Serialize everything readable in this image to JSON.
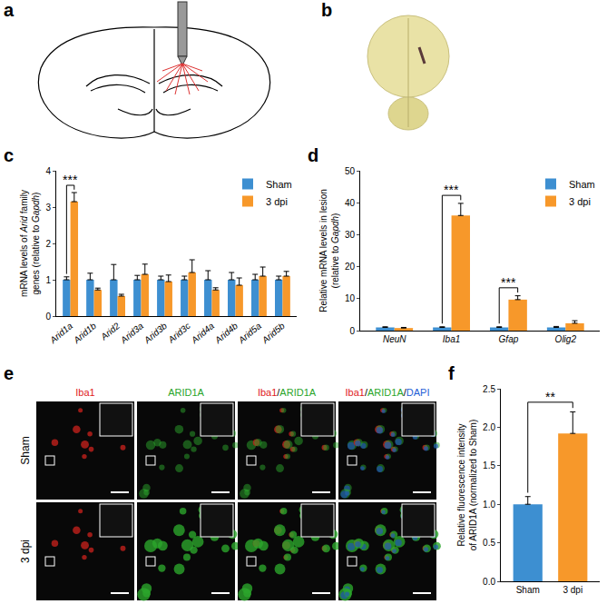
{
  "chart_data": [
    {
      "type": "bar",
      "label": "c",
      "categories": [
        "Arid1a",
        "Arid1b",
        "Arid2",
        "Arid3a",
        "Arid3b",
        "Arid3c",
        "Arid4a",
        "Arid4b",
        "Arid5a",
        "Arid5b"
      ],
      "series": [
        {
          "name": "Sham",
          "color": "#3d8fd1",
          "values": [
            1.0,
            1.0,
            1.0,
            1.0,
            1.0,
            1.0,
            1.0,
            1.0,
            1.0,
            1.0
          ],
          "errors": [
            0.08,
            0.18,
            0.42,
            0.12,
            0.1,
            0.1,
            0.25,
            0.2,
            0.15,
            0.1
          ]
        },
        {
          "name": "3 dpi",
          "color": "#f7982a",
          "values": [
            3.15,
            0.72,
            0.55,
            1.15,
            0.95,
            1.2,
            0.72,
            0.85,
            1.1,
            1.1
          ],
          "errors": [
            0.25,
            0.05,
            0.05,
            0.28,
            0.18,
            0.35,
            0.06,
            0.2,
            0.25,
            0.13
          ]
        }
      ],
      "ylabel": [
        "mRNA levels of Arid family",
        "genes (relative to Gapdh)"
      ],
      "ylim": [
        0,
        4
      ],
      "yticks": [
        0,
        1,
        2,
        3,
        4
      ],
      "legend": "top-right",
      "annotations": [
        {
          "text": "***",
          "category": "Arid1a"
        }
      ]
    },
    {
      "type": "bar",
      "label": "d",
      "categories": [
        "NeuN",
        "Iba1",
        "Gfap",
        "Olig2"
      ],
      "series": [
        {
          "name": "Sham",
          "color": "#3d8fd1",
          "values": [
            1.0,
            1.0,
            1.0,
            1.0
          ],
          "errors": [
            0.2,
            0.2,
            0.2,
            0.3
          ]
        },
        {
          "name": "3 dpi",
          "color": "#f7982a",
          "values": [
            0.8,
            36,
            9.7,
            2.3
          ],
          "errors": [
            0.2,
            3.8,
            1.2,
            0.8
          ]
        }
      ],
      "ylabel": [
        "Relative mRNA levels in lesion",
        "(relative to Gapdh)"
      ],
      "ylim": [
        0,
        50
      ],
      "yticks": [
        0,
        10,
        20,
        30,
        40,
        50
      ],
      "legend": "top-right",
      "annotations": [
        {
          "text": "***",
          "category": "Iba1"
        },
        {
          "text": "***",
          "category": "Gfap"
        }
      ]
    },
    {
      "type": "bar",
      "label": "f",
      "categories": [
        "Sham",
        "3 dpi"
      ],
      "values": [
        1.0,
        1.92
      ],
      "errors": [
        0.1,
        0.28
      ],
      "colors": [
        "#3d8fd1",
        "#f7982a"
      ],
      "ylabel": [
        "Relative fluorescence intensity",
        "of ARID1A (normalized to Sham)"
      ],
      "ylim": [
        0,
        2.5
      ],
      "yticks": [
        {
          "value": 0,
          "label": "0.0"
        },
        0.5,
        {
          "value": 1,
          "label": "1.0"
        },
        1.5,
        {
          "value": 2,
          "label": "2.0"
        },
        2.5
      ],
      "annotations": [
        {
          "text": "**",
          "from": "Sham",
          "to": "3 dpi"
        }
      ]
    }
  ],
  "figures": [
    {
      "label": "a",
      "kind": "schematic"
    },
    {
      "label": "b",
      "kind": "photo"
    },
    {
      "label": "e",
      "kind": "micrographs",
      "rows": [
        "Sham",
        "3 dpi"
      ],
      "columns": [
        [
          {
            "text": "Iba1",
            "color": "#e0201b"
          }
        ],
        [
          {
            "text": "ARID1A",
            "color": "#2aa52a"
          }
        ],
        [
          {
            "text": "Iba1",
            "color": "#e0201b"
          },
          {
            "text": "/",
            "color": "#000000"
          },
          {
            "text": "ARID1A",
            "color": "#2aa52a"
          }
        ],
        [
          {
            "text": "Iba1",
            "color": "#e0201b"
          },
          {
            "text": "/",
            "color": "#000000"
          },
          {
            "text": "ARID1A",
            "color": "#2aa52a"
          },
          {
            "text": "/",
            "color": "#000000"
          },
          {
            "text": "DAPI",
            "color": "#1f5fd6"
          }
        ]
      ]
    }
  ]
}
